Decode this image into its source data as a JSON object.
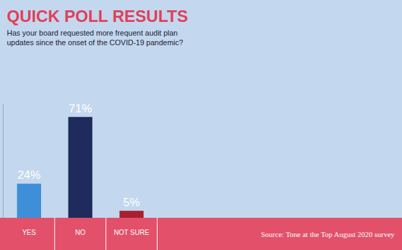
{
  "chart_data": {
    "type": "bar",
    "title": "QUICK POLL RESULTS",
    "subtitle": "Has your board requested more frequent audit plan updates since the onset of the COVID-19 pandemic?",
    "categories": [
      "YES",
      "NO",
      "NOT SURE"
    ],
    "values": [
      24,
      71,
      5
    ],
    "value_labels": [
      "24%",
      "71%",
      "5%"
    ],
    "colors": [
      "#3d8fd8",
      "#1f2b5c",
      "#a8202f"
    ],
    "data_labels": true,
    "ylim": [
      0,
      80
    ],
    "grid": false,
    "tick_labels": "x",
    "source": "Source: Tone at the Top August 2020 survey"
  }
}
